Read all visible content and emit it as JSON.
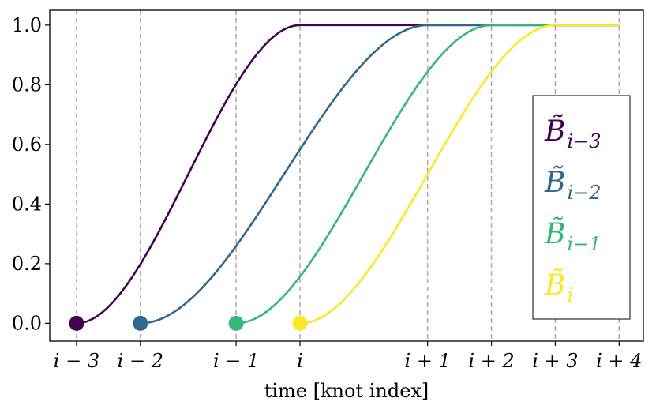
{
  "chart_data": {
    "type": "line",
    "xlabel": "time [knot index]",
    "ylabel": "",
    "ylim": [
      0,
      1
    ],
    "yticks": [
      0.0,
      0.2,
      0.4,
      0.6,
      0.8,
      1.0
    ],
    "ytick_labels": [
      "0.0",
      "0.2",
      "0.4",
      "0.6",
      "0.8",
      "1.0"
    ],
    "knots": [
      {
        "label": "i − 3",
        "t": 0.0
      },
      {
        "label": "i − 2",
        "t": 1.0
      },
      {
        "label": "i − 1",
        "t": 2.5
      },
      {
        "label": "i",
        "t": 3.5
      },
      {
        "label": "i + 1",
        "t": 5.5
      },
      {
        "label": "i + 2",
        "t": 6.5
      },
      {
        "label": "i + 3",
        "t": 7.5
      },
      {
        "label": "i + 4",
        "t": 8.5
      }
    ],
    "grid": "vertical dashed at knots",
    "legend_position": "right",
    "series": [
      {
        "name": "B̃ i−3",
        "legend_base": "B̃",
        "legend_sub": "i−3",
        "color": "#440154",
        "start_knot": 0,
        "end_knot": 3
      },
      {
        "name": "B̃ i−2",
        "legend_base": "B̃",
        "legend_sub": "i−2",
        "color": "#31688e",
        "start_knot": 1,
        "end_knot": 4
      },
      {
        "name": "B̃ i−1",
        "legend_base": "B̃",
        "legend_sub": "i−1",
        "color": "#35b779",
        "start_knot": 2,
        "end_knot": 5
      },
      {
        "name": "B̃ i",
        "legend_base": "B̃",
        "legend_sub": "i",
        "color": "#fde725",
        "start_knot": 3,
        "end_knot": 6
      }
    ]
  }
}
